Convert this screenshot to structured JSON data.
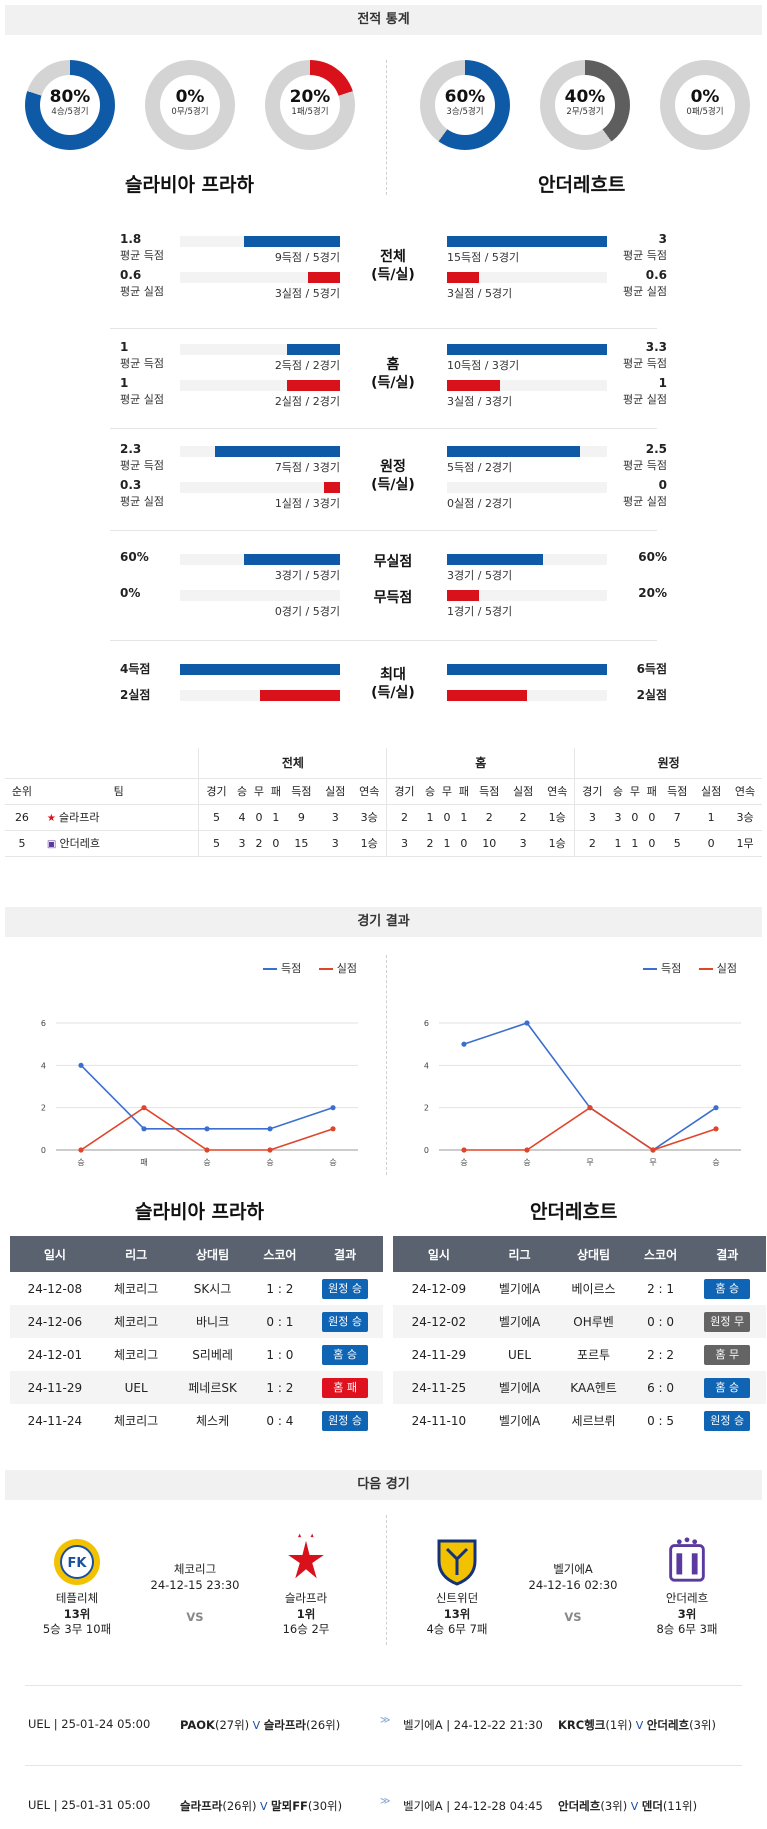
{
  "sections": {
    "stats": "전적 통계",
    "results": "경기 결과",
    "next": "다음 경기"
  },
  "teams": {
    "home": "슬라비아 프라하",
    "away": "안더레흐트"
  },
  "donuts": [
    {
      "pct": "80%",
      "sub": "4승/5경기",
      "value": 0.8,
      "color": "#0f5aa6"
    },
    {
      "pct": "0%",
      "sub": "0무/5경기",
      "value": 0,
      "color": "#7a7a7a"
    },
    {
      "pct": "20%",
      "sub": "1패/5경기",
      "value": 0.2,
      "color": "#d9111b"
    },
    {
      "pct": "60%",
      "sub": "3승/5경기",
      "value": 0.6,
      "color": "#0f5aa6"
    },
    {
      "pct": "40%",
      "sub": "2무/5경기",
      "value": 0.4,
      "color": "#5e5e5e"
    },
    {
      "pct": "0%",
      "sub": "0패/5경기",
      "value": 0,
      "color": "#d9111b"
    }
  ],
  "stat_rows": [
    {
      "lv": "1.8",
      "ll": "평균 득점",
      "lf": 0.6,
      "lsub": "9득점 / 5경기",
      "color": "blue",
      "rv": "3",
      "rl": "평균 득점",
      "rf": 1.0,
      "rsub": "15득점 / 5경기"
    },
    {
      "lv": "0.6",
      "ll": "평균 실점",
      "lf": 0.2,
      "lsub": "3실점 / 5경기",
      "color": "red",
      "rv": "0.6",
      "rl": "평균 실점",
      "rf": 0.2,
      "rsub": "3실점 / 5경기"
    },
    {
      "lv": "1",
      "ll": "평균 득점",
      "lf": 0.33,
      "lsub": "2득점 / 2경기",
      "color": "blue",
      "rv": "3.3",
      "rl": "평균 득점",
      "rf": 1.0,
      "rsub": "10득점 / 3경기"
    },
    {
      "lv": "1",
      "ll": "평균 실점",
      "lf": 0.33,
      "lsub": "2실점 / 2경기",
      "color": "red",
      "rv": "1",
      "rl": "평균 실점",
      "rf": 0.33,
      "rsub": "3실점 / 3경기"
    },
    {
      "lv": "2.3",
      "ll": "평균 득점",
      "lf": 0.78,
      "lsub": "7득점 / 3경기",
      "color": "blue",
      "rv": "2.5",
      "rl": "평균 득점",
      "rf": 0.83,
      "rsub": "5득점 / 2경기"
    },
    {
      "lv": "0.3",
      "ll": "평균 실점",
      "lf": 0.1,
      "lsub": "1실점 / 3경기",
      "color": "red",
      "rv": "0",
      "rl": "평균 실점",
      "rf": 0,
      "rsub": "0실점 / 2경기"
    },
    {
      "lv": "60%",
      "ll": "",
      "lf": 0.6,
      "lsub": "3경기 / 5경기",
      "color": "blue",
      "rv": "60%",
      "rl": "",
      "rf": 0.6,
      "rsub": "3경기 / 5경기"
    },
    {
      "lv": "0%",
      "ll": "",
      "lf": 0,
      "lsub": "0경기 / 5경기",
      "color": "red",
      "rv": "20%",
      "rl": "",
      "rf": 0.2,
      "rsub": "1경기 / 5경기"
    },
    {
      "lv": "4득점",
      "ll": "",
      "lf": 1.0,
      "lsub": "",
      "color": "blue",
      "rv": "6득점",
      "rl": "",
      "rf": 1.0,
      "rsub": ""
    },
    {
      "lv": "2실점",
      "ll": "",
      "lf": 0.5,
      "lsub": "",
      "color": "red",
      "rv": "2실점",
      "rl": "",
      "rf": 0.5,
      "rsub": ""
    }
  ],
  "cat_labels": [
    [
      "전체",
      "(득/실)"
    ],
    [
      "홈",
      "(득/실)"
    ],
    [
      "원정",
      "(득/실)"
    ],
    [
      "무실점",
      ""
    ],
    [
      "무득점",
      ""
    ],
    [
      "최대",
      "(득/실)"
    ]
  ],
  "standings": {
    "groups": [
      "전체",
      "홈",
      "원정"
    ],
    "cols": [
      "순위",
      "팀",
      "경기",
      "승",
      "무",
      "패",
      "득점",
      "실점",
      "연속",
      "경기",
      "승",
      "무",
      "패",
      "득점",
      "실점",
      "연속",
      "경기",
      "승",
      "무",
      "패",
      "득점",
      "실점",
      "연속"
    ],
    "rows": [
      [
        "26",
        "슬라프라",
        "5",
        "4",
        "0",
        "1",
        "9",
        "3",
        "3승",
        "2",
        "1",
        "0",
        "1",
        "2",
        "2",
        "1승",
        "3",
        "3",
        "0",
        "0",
        "7",
        "1",
        "3승"
      ],
      [
        "5",
        "안더레흐",
        "5",
        "3",
        "2",
        "0",
        "15",
        "3",
        "1승",
        "3",
        "2",
        "1",
        "0",
        "10",
        "3",
        "1승",
        "2",
        "1",
        "1",
        "0",
        "5",
        "0",
        "1무"
      ]
    ]
  },
  "legend": {
    "scored": "득점",
    "conceded": "실점"
  },
  "chart_data": [
    {
      "type": "line",
      "categories": [
        "승",
        "패",
        "승",
        "승",
        "승"
      ],
      "ylim": [
        0,
        6
      ],
      "yticks": [
        0,
        2,
        4,
        6
      ],
      "series": [
        {
          "name": "득점",
          "values": [
            4,
            1,
            1,
            1,
            2
          ],
          "color": "#3a6fd0"
        },
        {
          "name": "실점",
          "values": [
            0,
            2,
            0,
            0,
            1
          ],
          "color": "#e0452a"
        }
      ]
    },
    {
      "type": "line",
      "categories": [
        "승",
        "승",
        "무",
        "무",
        "승"
      ],
      "ylim": [
        0,
        6
      ],
      "yticks": [
        0,
        2,
        4,
        6
      ],
      "series": [
        {
          "name": "득점",
          "values": [
            5,
            6,
            2,
            0,
            2
          ],
          "color": "#3a6fd0"
        },
        {
          "name": "실점",
          "values": [
            0,
            0,
            2,
            0,
            1
          ],
          "color": "#e0452a"
        }
      ]
    }
  ],
  "results_head": [
    "일시",
    "리그",
    "상대팀",
    "스코어",
    "결과"
  ],
  "results": [
    [
      [
        "24-12-08",
        "체코리그",
        "SK시그",
        "1 : 2",
        "원정 승",
        "b-blue"
      ],
      [
        "24-12-06",
        "체코리그",
        "바니크",
        "0 : 1",
        "원정 승",
        "b-blue"
      ],
      [
        "24-12-01",
        "체코리그",
        "S리베레",
        "1 : 0",
        "홈 승",
        "b-blue"
      ],
      [
        "24-11-29",
        "UEL",
        "페네르SK",
        "1 : 2",
        "홈 패",
        "b-red"
      ],
      [
        "24-11-24",
        "체코리그",
        "체스케",
        "0 : 4",
        "원정 승",
        "b-blue"
      ]
    ],
    [
      [
        "24-12-09",
        "벨기에A",
        "베이르스",
        "2 : 1",
        "홈 승",
        "b-blue"
      ],
      [
        "24-12-02",
        "벨기에A",
        "OH루벤",
        "0 : 0",
        "원정 무",
        "b-gray"
      ],
      [
        "24-11-29",
        "UEL",
        "포르투",
        "2 : 2",
        "홈 무",
        "b-gray"
      ],
      [
        "24-11-25",
        "벨기에A",
        "KAA헨트",
        "6 : 0",
        "홈 승",
        "b-blue"
      ],
      [
        "24-11-10",
        "벨기에A",
        "세르브뤼",
        "0 : 5",
        "원정 승",
        "b-blue"
      ]
    ]
  ],
  "next": [
    {
      "home": "테플리체",
      "home_rank": "13위",
      "home_rec": "5승 3무 10패",
      "league": "체코리그",
      "date": "24-12-15 23:30",
      "vs": "VS",
      "away": "슬라프라",
      "away_rank": "1위",
      "away_rec": "16승 2무"
    },
    {
      "home": "신트위던",
      "home_rank": "13위",
      "home_rec": "4승 6무 7패",
      "league": "벨기에A",
      "date": "24-12-16 02:30",
      "vs": "VS",
      "away": "안더레흐",
      "away_rank": "3위",
      "away_rec": "8승 6무 3패"
    }
  ],
  "upcoming": [
    {
      "l_info": "UEL | 25-01-24 05:00",
      "l_a": "PAOK",
      "l_ar": "(27위)",
      "l_b": "슬라프라",
      "l_br": "(26위)",
      "r_info": "벨기에A | 24-12-22 21:30",
      "r_a": "KRC헹크",
      "r_ar": "(1위)",
      "r_b": "안더레흐",
      "r_br": "(3위)"
    },
    {
      "l_info": "UEL | 25-01-31 05:00",
      "l_a": "슬라프라",
      "l_ar": "(26위)",
      "l_b": "말뫼FF",
      "l_br": "(30위)",
      "r_info": "벨기에A | 24-12-28 04:45",
      "r_a": "안더레흐",
      "r_ar": "(3위)",
      "r_b": "덴더",
      "r_br": "(11위)"
    }
  ]
}
